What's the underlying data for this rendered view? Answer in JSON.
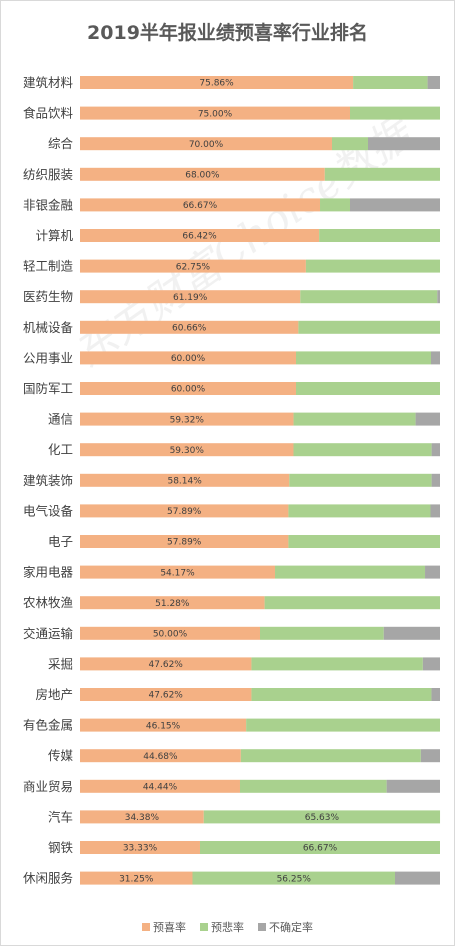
{
  "chart_data": {
    "type": "bar",
    "orientation": "horizontal",
    "stacked": true,
    "title": "2019半年报业绩预喜率行业排名",
    "categories": [
      "建筑材料",
      "食品饮料",
      "综合",
      "纺织服装",
      "非银金融",
      "计算机",
      "轻工制造",
      "医药生物",
      "机械设备",
      "公用事业",
      "国防军工",
      "通信",
      "化工",
      "建筑装饰",
      "电气设备",
      "电子",
      "家用电器",
      "农林牧渔",
      "交通运输",
      "采掘",
      "房地产",
      "有色金属",
      "传媒",
      "商业贸易",
      "汽车",
      "钢铁",
      "休闲服务"
    ],
    "series": [
      {
        "name": "预喜率",
        "color": "#f4b183",
        "values": [
          75.86,
          75.0,
          70.0,
          68.0,
          66.67,
          66.42,
          62.75,
          61.19,
          60.66,
          60.0,
          60.0,
          59.32,
          59.3,
          58.14,
          57.89,
          57.89,
          54.17,
          51.28,
          50.0,
          47.62,
          47.62,
          46.15,
          44.68,
          44.44,
          34.38,
          33.33,
          31.25
        ]
      },
      {
        "name": "预悲率",
        "color": "#a9d18e",
        "values": [
          20.69,
          25.0,
          10.0,
          32.0,
          8.33,
          33.58,
          37.25,
          38.06,
          39.34,
          37.5,
          40.0,
          33.9,
          38.37,
          39.53,
          39.47,
          42.11,
          41.67,
          48.72,
          34.38,
          47.62,
          50.0,
          53.85,
          50.0,
          40.74,
          65.63,
          66.67,
          56.25
        ]
      },
      {
        "name": "不确定率",
        "color": "#a6a6a6",
        "values": [
          3.45,
          0.0,
          20.0,
          0.0,
          25.0,
          0.0,
          0.0,
          0.75,
          0.0,
          2.5,
          0.0,
          6.78,
          2.33,
          2.33,
          2.64,
          0.0,
          4.16,
          0.0,
          15.62,
          4.76,
          2.38,
          0.0,
          5.32,
          14.82,
          0.0,
          0.0,
          12.5
        ]
      }
    ],
    "labels": {
      "预喜率": [
        "75.86%",
        "75.00%",
        "70.00%",
        "68.00%",
        "66.67%",
        "66.42%",
        "62.75%",
        "61.19%",
        "60.66%",
        "60.00%",
        "60.00%",
        "59.32%",
        "59.30%",
        "58.14%",
        "57.89%",
        "57.89%",
        "54.17%",
        "51.28%",
        "50.00%",
        "47.62%",
        "47.62%",
        "46.15%",
        "44.68%",
        "44.44%",
        "34.38%",
        "33.33%",
        "31.25%"
      ],
      "预悲率": [
        "",
        "",
        "",
        "",
        "",
        "",
        "",
        "",
        "",
        "",
        "",
        "",
        "",
        "",
        "",
        "",
        "",
        "",
        "",
        "",
        "",
        "",
        "",
        "",
        "65.63%",
        "66.67%",
        "56.25%"
      ]
    },
    "xlim": [
      0,
      100
    ],
    "grid": false,
    "legend_position": "bottom",
    "watermark": "东方财富Choice数据"
  }
}
